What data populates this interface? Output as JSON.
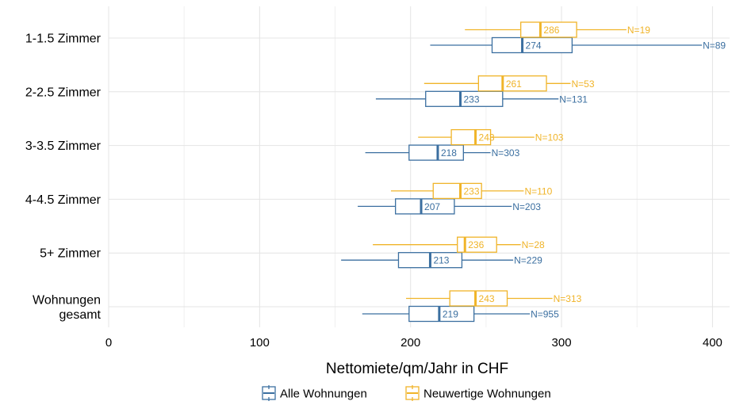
{
  "chart_data": {
    "type": "boxplot",
    "title": "",
    "xlabel": "Nettomiete/qm/Jahr in CHF",
    "ylabel": "",
    "xlim": [
      0,
      410
    ],
    "xticks": [
      0,
      100,
      200,
      300,
      400
    ],
    "grid": true,
    "orientation": "horizontal",
    "legend_position": "bottom",
    "categories": [
      "1-1.5 Zimmer",
      "2-2.5 Zimmer",
      "3-3.5 Zimmer",
      "4-4.5 Zimmer",
      "5+ Zimmer",
      [
        "Wohnungen",
        "gesamt"
      ]
    ],
    "series": [
      {
        "name": "Alle Wohnungen",
        "color": "#3b6fa0",
        "boxes": [
          {
            "whisker_low": 213,
            "q1": 254,
            "median": 274,
            "q3": 307,
            "whisker_high": 393,
            "median_label": "274",
            "n_label": "N=89"
          },
          {
            "whisker_low": 177,
            "q1": 210,
            "median": 233,
            "q3": 261,
            "whisker_high": 298,
            "median_label": "233",
            "n_label": "N=131"
          },
          {
            "whisker_low": 170,
            "q1": 199,
            "median": 218,
            "q3": 235,
            "whisker_high": 253,
            "median_label": "218",
            "n_label": "N=303"
          },
          {
            "whisker_low": 165,
            "q1": 190,
            "median": 207,
            "q3": 229,
            "whisker_high": 267,
            "median_label": "207",
            "n_label": "N=203"
          },
          {
            "whisker_low": 154,
            "q1": 192,
            "median": 213,
            "q3": 234,
            "whisker_high": 268,
            "median_label": "213",
            "n_label": "N=229"
          },
          {
            "whisker_low": 168,
            "q1": 199,
            "median": 219,
            "q3": 242,
            "whisker_high": 279,
            "median_label": "219",
            "n_label": "N=955"
          }
        ]
      },
      {
        "name": "Neuwertige Wohnungen",
        "color": "#f0b429",
        "boxes": [
          {
            "whisker_low": 236,
            "q1": 273,
            "median": 286,
            "q3": 310,
            "whisker_high": 343,
            "median_label": "286",
            "n_label": "N=19"
          },
          {
            "whisker_low": 209,
            "q1": 245,
            "median": 261,
            "q3": 290,
            "whisker_high": 306,
            "median_label": "261",
            "n_label": "N=53"
          },
          {
            "whisker_low": 205,
            "q1": 227,
            "median": 243,
            "q3": 253,
            "whisker_high": 282,
            "median_label": "243",
            "n_label": "N=103"
          },
          {
            "whisker_low": 187,
            "q1": 215,
            "median": 233,
            "q3": 247,
            "whisker_high": 275,
            "median_label": "233",
            "n_label": "N=110"
          },
          {
            "whisker_low": 175,
            "q1": 231,
            "median": 236,
            "q3": 257,
            "whisker_high": 273,
            "median_label": "236",
            "n_label": "N=28"
          },
          {
            "whisker_low": 197,
            "q1": 226,
            "median": 243,
            "q3": 264,
            "whisker_high": 294,
            "median_label": "243",
            "n_label": "N=313"
          }
        ]
      }
    ]
  }
}
